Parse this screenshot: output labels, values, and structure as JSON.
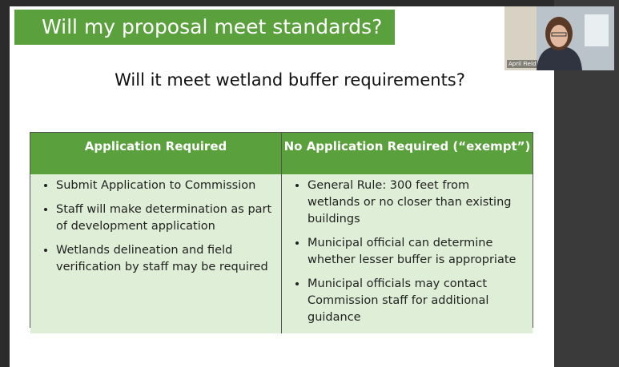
{
  "slide": {
    "title": "Will my proposal meet standards?",
    "subtitle": "Will it meet wetland buffer requirements?",
    "table": {
      "headers": [
        "Application Required",
        "No Application Required (“exempt”)"
      ],
      "columns": [
        [
          "Submit Application to Commission",
          "Staff will make determination as part of development application",
          "Wetlands delineation and field verification by staff may be required"
        ],
        [
          "General Rule: 300 feet from wetlands or no closer than existing buildings",
          "Municipal official can determine whether lesser buffer is appropriate",
          "Municipal officials may contact Commission staff for additional guidance"
        ]
      ]
    }
  },
  "video": {
    "participant_name": "April Field"
  }
}
